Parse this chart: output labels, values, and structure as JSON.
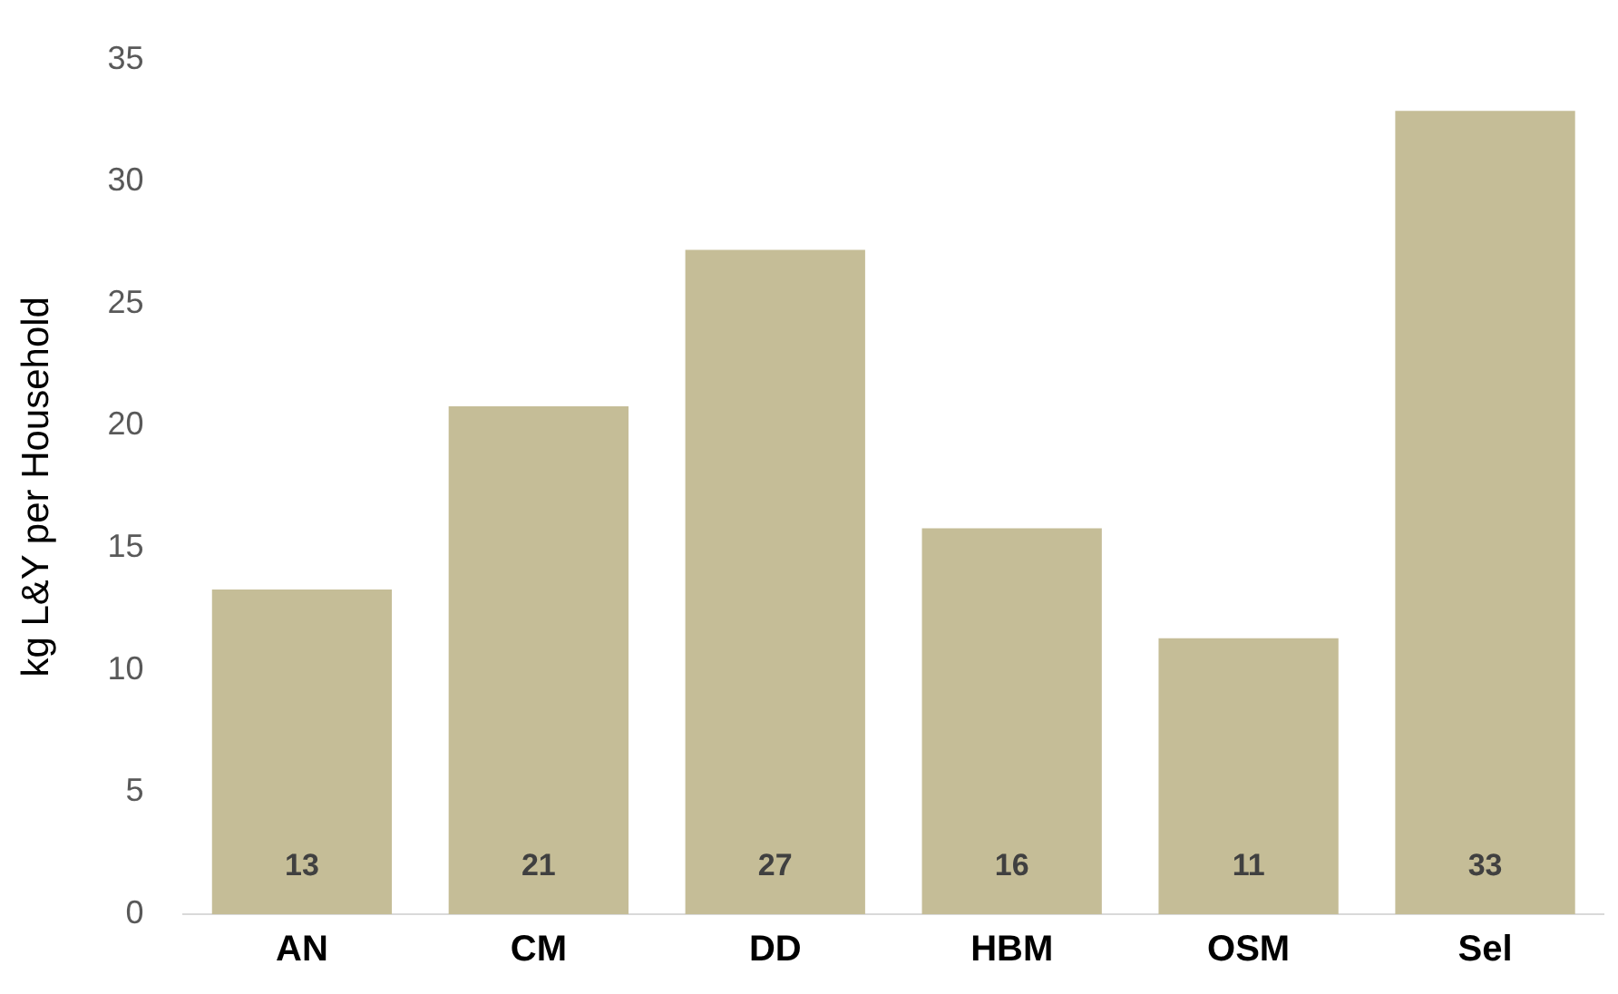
{
  "chart_data": {
    "type": "bar",
    "ylabel": "kg L&Y per Household",
    "categories": [
      "AN",
      "CM",
      "DD",
      "HBM",
      "OSM",
      "Sel"
    ],
    "values": [
      13.3,
      20.8,
      27.2,
      15.8,
      11.3,
      32.9
    ],
    "value_labels": [
      "13",
      "21",
      "27",
      "16",
      "11",
      "33"
    ],
    "color": "#c5bd97",
    "ylim": [
      0,
      35
    ],
    "yticks": [
      0,
      5,
      10,
      15,
      20,
      25,
      30,
      35
    ],
    "grid": false,
    "legend": false
  }
}
